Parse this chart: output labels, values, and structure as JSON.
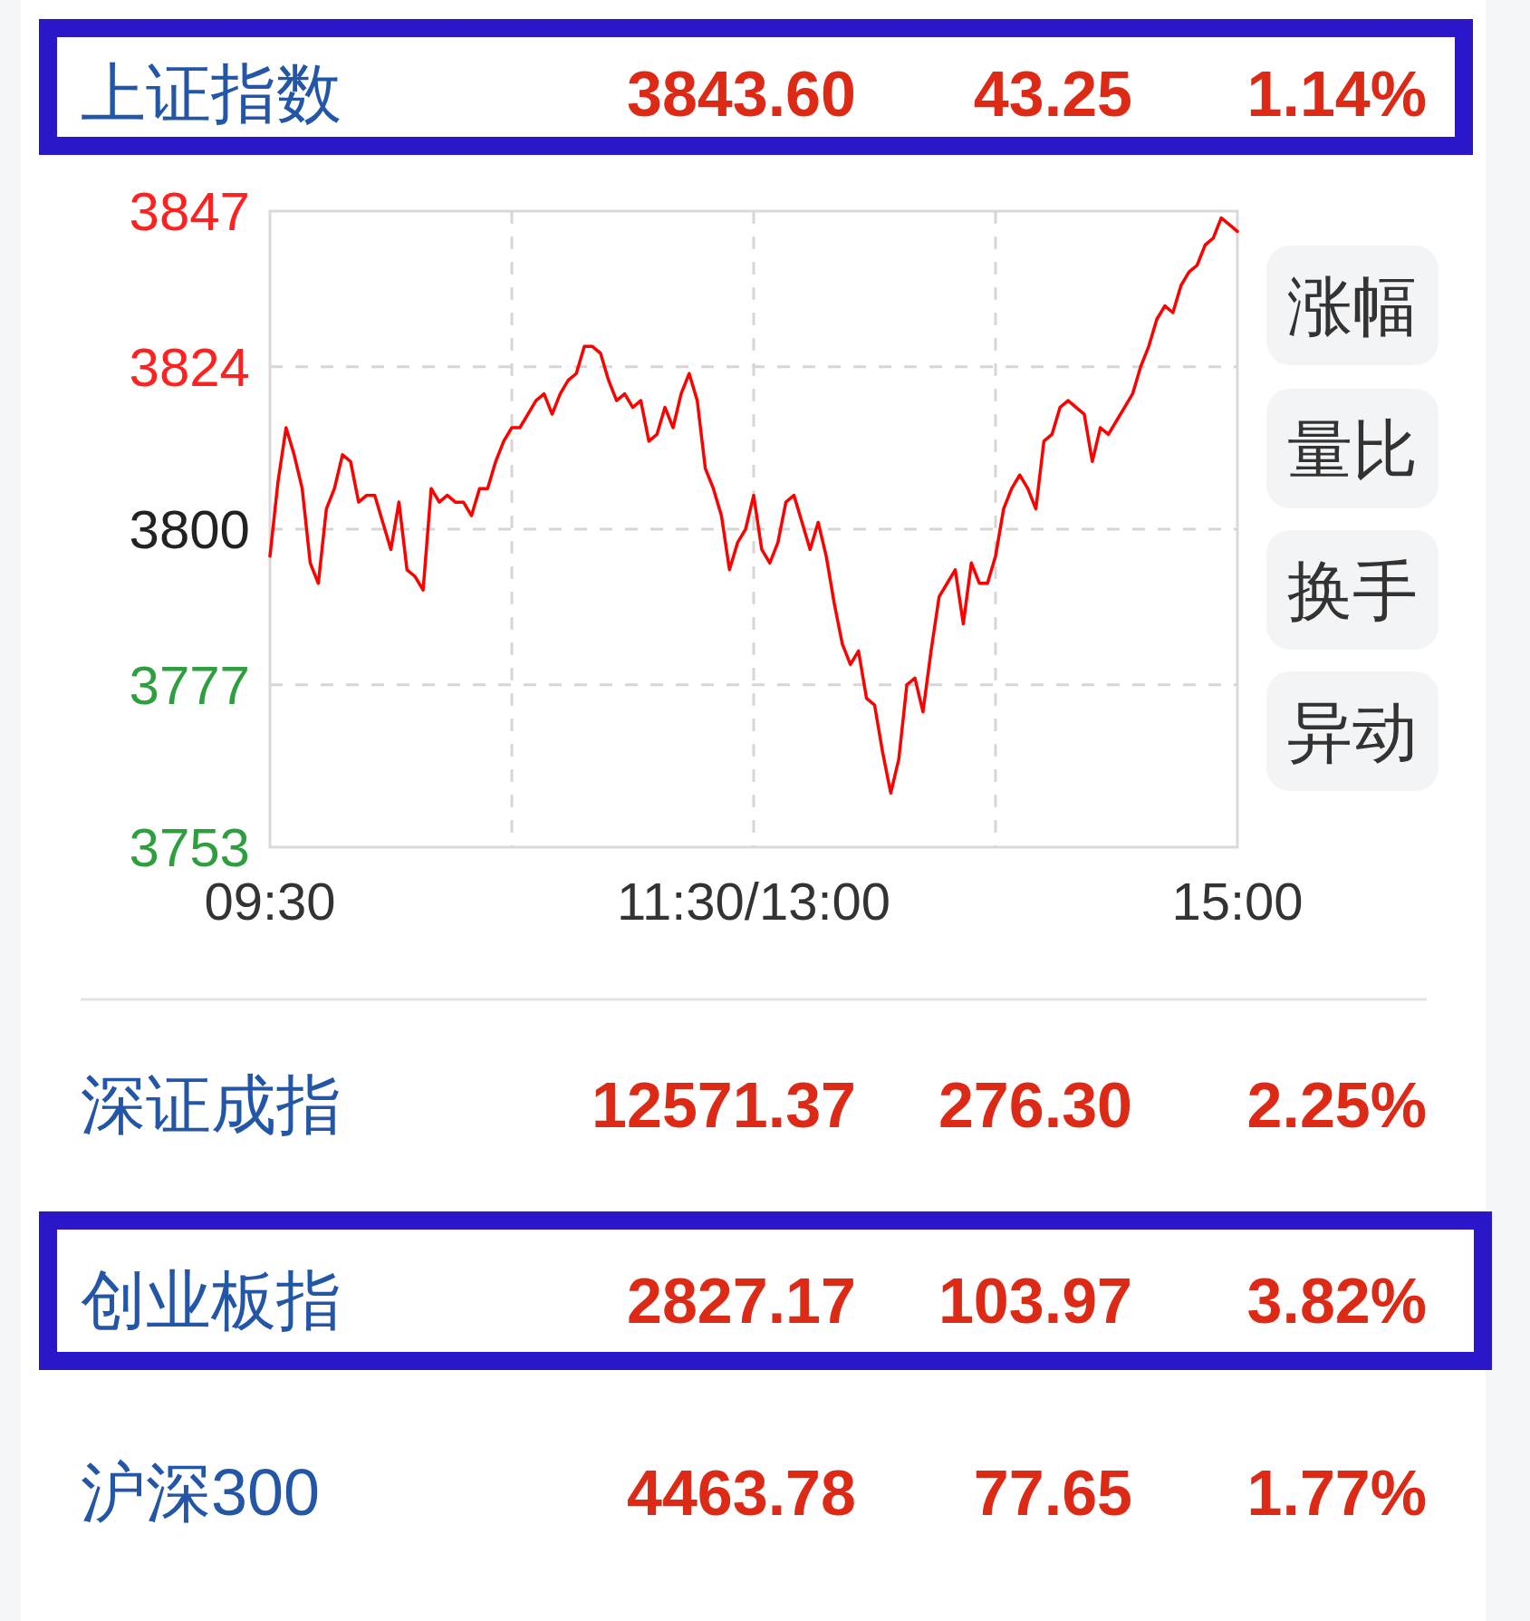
{
  "chart_data": [
    {
      "type": "line",
      "title": "上证指数",
      "ylim": [
        3753,
        3847
      ],
      "yticks": [
        3753,
        3777,
        3800,
        3824,
        3847
      ],
      "grid": true,
      "categories": [
        "09:30",
        null,
        null,
        null,
        null,
        null,
        null,
        null,
        null,
        null,
        null,
        null,
        null,
        null,
        null,
        null,
        null,
        null,
        null,
        null,
        null,
        null,
        null,
        null,
        null,
        null,
        null,
        null,
        null,
        null,
        null,
        null,
        null,
        null,
        null,
        null,
        null,
        null,
        null,
        null,
        null,
        null,
        null,
        null,
        null,
        null,
        null,
        null,
        null,
        null,
        null,
        null,
        null,
        null,
        null,
        null,
        null,
        null,
        null,
        null,
        "11:30/13:00",
        null,
        null,
        null,
        null,
        null,
        null,
        null,
        null,
        null,
        null,
        null,
        null,
        null,
        null,
        null,
        null,
        null,
        null,
        null,
        null,
        null,
        null,
        null,
        null,
        null,
        null,
        null,
        null,
        null,
        null,
        null,
        null,
        null,
        null,
        null,
        null,
        null,
        null,
        null,
        null,
        null,
        null,
        null,
        null,
        null,
        null,
        null,
        null,
        null,
        null,
        null,
        null,
        null,
        null,
        null,
        null,
        null,
        null,
        null,
        "15:00"
      ],
      "annotations": [
        "3843.60",
        "43.25",
        "1.14%",
        "涨幅",
        "量比",
        "换手",
        "异动"
      ],
      "series": [
        {
          "color": "#ff0000",
          "values": [
            3796,
            3807,
            3815,
            3811,
            3806,
            3795,
            3792,
            3803,
            3806,
            3811,
            3810,
            3804,
            3805,
            3805,
            3801,
            3797,
            3804,
            3794,
            3793,
            3791,
            3806,
            3804,
            3805,
            3804,
            3804,
            3802,
            3806,
            3806,
            3810,
            3813,
            3815,
            3815,
            3817,
            3819,
            3820,
            3817,
            3820,
            3822,
            3823,
            3827,
            3827,
            3826,
            3822,
            3819,
            3820,
            3818,
            3819,
            3813,
            3814,
            3818,
            3815,
            3820,
            3823,
            3819,
            3809,
            3806,
            3802,
            3794,
            3798,
            3800,
            3805,
            3797,
            3795,
            3798,
            3804,
            3805,
            3801,
            3797,
            3801,
            3796,
            3789,
            3783,
            3780,
            3782,
            3775,
            3774,
            3767,
            3761,
            3766,
            3777,
            3778,
            3773,
            3782,
            3790,
            3792,
            3794,
            3786,
            3795,
            3792,
            3792,
            3796,
            3803,
            3806,
            3808,
            3806,
            3803,
            3813,
            3814,
            3818,
            3819,
            3818,
            3817,
            3810,
            3815,
            3814,
            3816,
            3818,
            3820,
            3824,
            3827,
            3831,
            3833,
            3832,
            3836,
            3838,
            3839,
            3842,
            3843,
            3846,
            3845,
            3844
          ]
        }
      ]
    },
    {
      "type": "other",
      "annotations": [
        "深证成指",
        "12571.37",
        "276.30",
        "2.25%",
        "创业板指",
        "2827.17",
        "103.97",
        "3.82%",
        "沪深300",
        "4463.78",
        "77.65",
        "1.77%"
      ]
    }
  ]
}
